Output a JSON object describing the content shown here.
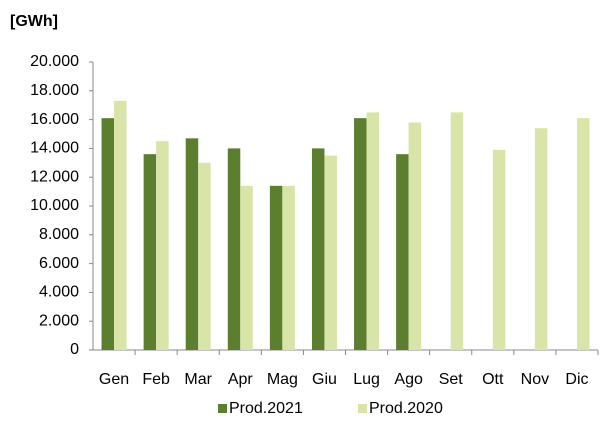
{
  "chart_data": {
    "type": "bar",
    "title": "[GWh]",
    "categories": [
      "Gen",
      "Feb",
      "Mar",
      "Apr",
      "Mag",
      "Giu",
      "Lug",
      "Ago",
      "Set",
      "Ott",
      "Nov",
      "Dic"
    ],
    "series": [
      {
        "name": "Prod.2021",
        "color": "#5b7f2e",
        "values": [
          16100,
          13600,
          14700,
          14000,
          11400,
          14000,
          16100,
          13600,
          null,
          null,
          null,
          null
        ]
      },
      {
        "name": "Prod.2020",
        "color": "#d8e4a8",
        "values": [
          17300,
          14500,
          13000,
          11400,
          11400,
          13500,
          16500,
          15800,
          16500,
          13900,
          15400,
          16100
        ]
      }
    ],
    "ylim": [
      0,
      20000
    ],
    "yticks": [
      0,
      {
        "value": 2000,
        "label": "2.000"
      },
      {
        "value": 4000,
        "label": "4.000"
      },
      {
        "value": 6000,
        "label": "6.000"
      },
      {
        "value": 8000,
        "label": "8.000"
      },
      {
        "value": 10000,
        "label": "10.000"
      },
      {
        "value": 12000,
        "label": "12.000"
      },
      {
        "value": 14000,
        "label": "14.000"
      },
      {
        "value": 16000,
        "label": "16.000"
      },
      {
        "value": 18000,
        "label": "18.000"
      },
      {
        "value": 20000,
        "label": "20.000"
      }
    ],
    "grid": false,
    "legend": "bottom"
  }
}
